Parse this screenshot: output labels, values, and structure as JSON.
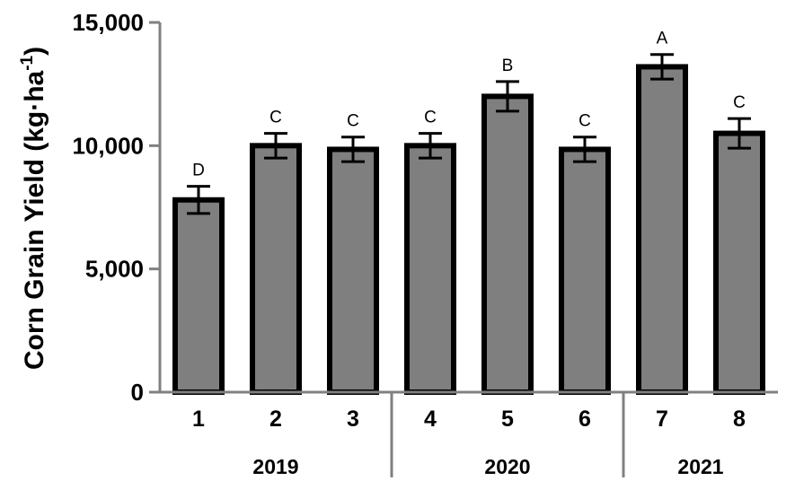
{
  "chart_data": {
    "type": "bar",
    "ylabel_main": "Corn Grain Yield (kg·ha",
    "ylabel_sup": "-1",
    "ylabel_close": ")",
    "ylim": [
      0,
      15000
    ],
    "y_ticks": [
      0,
      5000,
      10000,
      15000
    ],
    "y_tick_labels": [
      "0",
      "5,000",
      "10,000",
      "15,000"
    ],
    "categories": [
      "1",
      "2",
      "3",
      "4",
      "5",
      "6",
      "7",
      "8"
    ],
    "values": [
      7800,
      10000,
      9850,
      10000,
      12000,
      9850,
      13200,
      10500
    ],
    "errors": [
      550,
      500,
      500,
      500,
      600,
      500,
      500,
      600
    ],
    "significance": [
      "D",
      "C",
      "C",
      "C",
      "B",
      "C",
      "A",
      "C"
    ],
    "groups": [
      {
        "label": "2019",
        "categories": [
          "1",
          "2",
          "3"
        ]
      },
      {
        "label": "2020",
        "categories": [
          "4",
          "5",
          "6"
        ]
      },
      {
        "label": "2021",
        "categories": [
          "7",
          "8"
        ]
      }
    ],
    "bar_color": "#7f7f7f",
    "bar_stroke": "#000000",
    "axis_color": "#808080",
    "grid": false,
    "legend": "none"
  }
}
